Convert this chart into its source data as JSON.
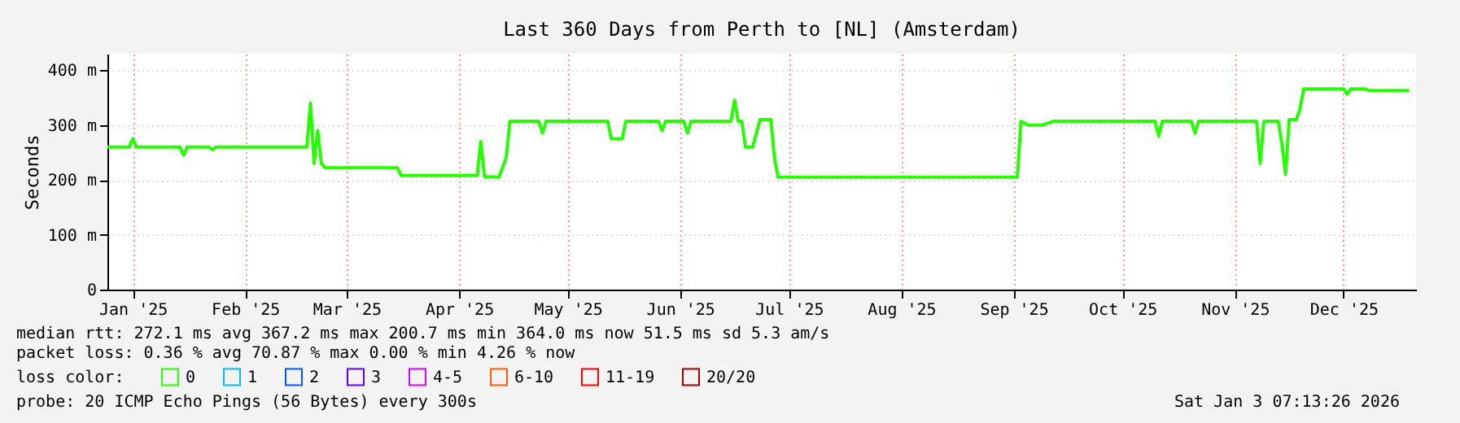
{
  "chart_data": {
    "type": "line",
    "title": "Last 360 Days from Perth to [NL] (Amsterdam)",
    "ylabel": "Seconds",
    "x": [
      "2025-01-08",
      "2025-01-14",
      "2025-01-15",
      "2025-01-16",
      "2025-01-28",
      "2025-01-29",
      "2025-01-30",
      "2025-02-05",
      "2025-02-06",
      "2025-02-07",
      "2025-03-04",
      "2025-03-05",
      "2025-03-06",
      "2025-03-07",
      "2025-03-08",
      "2025-03-09",
      "2025-03-29",
      "2025-03-30",
      "2025-04-20",
      "2025-04-21",
      "2025-04-22",
      "2025-04-26",
      "2025-04-28",
      "2025-04-29",
      "2025-05-07",
      "2025-05-08",
      "2025-05-09",
      "2025-05-26",
      "2025-05-27",
      "2025-05-30",
      "2025-05-31",
      "2025-06-09",
      "2025-06-10",
      "2025-06-11",
      "2025-06-16",
      "2025-06-17",
      "2025-06-18",
      "2025-06-29",
      "2025-06-30",
      "2025-07-01",
      "2025-07-02",
      "2025-07-03",
      "2025-07-05",
      "2025-07-07",
      "2025-07-10",
      "2025-07-11",
      "2025-07-12",
      "2025-09-16",
      "2025-09-17",
      "2025-09-19",
      "2025-09-23",
      "2025-09-26",
      "2025-10-24",
      "2025-10-25",
      "2025-10-26",
      "2025-11-03",
      "2025-11-04",
      "2025-11-05",
      "2025-11-21",
      "2025-11-22",
      "2025-11-23",
      "2025-11-27",
      "2025-11-28",
      "2025-11-29",
      "2025-11-30",
      "2025-12-02",
      "2025-12-03",
      "2025-12-04",
      "2025-12-15",
      "2025-12-16",
      "2025-12-17",
      "2025-12-21",
      "2025-12-22",
      "2026-01-02"
    ],
    "series": [
      {
        "name": "0",
        "color": "#26ff00",
        "values": [
          260,
          260,
          275,
          260,
          260,
          245,
          260,
          260,
          255,
          260,
          260,
          340,
          230,
          290,
          230,
          222,
          222,
          208,
          208,
          270,
          206,
          205,
          240,
          307,
          307,
          285,
          307,
          307,
          275,
          275,
          307,
          307,
          290,
          307,
          307,
          285,
          307,
          307,
          345,
          307,
          307,
          260,
          260,
          310,
          310,
          240,
          205,
          205,
          307,
          300,
          300,
          307,
          307,
          280,
          307,
          307,
          285,
          307,
          307,
          230,
          307,
          307,
          265,
          210,
          310,
          310,
          330,
          366,
          366,
          356,
          366,
          366,
          363,
          363
        ]
      },
      {
        "name": "1",
        "color": "#00b8ff",
        "values": [
          null,
          null,
          null,
          null,
          null,
          null,
          null,
          null,
          null,
          null,
          null,
          null,
          null,
          null,
          null,
          null,
          null,
          null,
          null,
          null,
          null,
          null,
          null,
          null,
          null,
          null,
          null,
          null,
          null,
          null,
          null,
          null,
          null,
          null,
          null,
          null,
          null,
          null,
          null,
          null,
          null,
          null,
          null,
          null,
          null,
          null,
          null,
          null,
          null,
          null,
          null,
          null,
          null,
          null,
          null,
          null,
          null,
          null,
          null,
          null,
          null,
          null,
          null,
          null,
          null,
          null,
          null,
          null,
          null,
          null,
          null,
          null,
          null,
          null
        ]
      },
      {
        "name": "2",
        "color": "#0059ff",
        "values": [
          null,
          null,
          null,
          null,
          null,
          null,
          null,
          null,
          null,
          null,
          null,
          null,
          null,
          null,
          null,
          null,
          null,
          null,
          null,
          null,
          null,
          null,
          null,
          null,
          null,
          null,
          null,
          null,
          null,
          null,
          null,
          null,
          null,
          null,
          null,
          null,
          null,
          null,
          null,
          null,
          null,
          null,
          null,
          null,
          null,
          null,
          null,
          null,
          null,
          null,
          null,
          null,
          null,
          null,
          null,
          null,
          null,
          null,
          null,
          null,
          null,
          null,
          null,
          null,
          null,
          null,
          null,
          null,
          null,
          null,
          null,
          null,
          null,
          null
        ]
      },
      {
        "name": "3",
        "color": "#5e00ff",
        "values": [
          null,
          null,
          null,
          null,
          null,
          null,
          null,
          null,
          null,
          null,
          null,
          null,
          null,
          null,
          null,
          null,
          null,
          null,
          null,
          null,
          null,
          null,
          null,
          null,
          null,
          null,
          null,
          null,
          null,
          null,
          null,
          null,
          null,
          null,
          null,
          null,
          null,
          null,
          null,
          null,
          null,
          null,
          null,
          null,
          null,
          null,
          null,
          null,
          null,
          null,
          null,
          null,
          null,
          null,
          null,
          null,
          null,
          null,
          null,
          null,
          null,
          null,
          null,
          null,
          null,
          null,
          null,
          null,
          null,
          null,
          null,
          null,
          null,
          null
        ]
      },
      {
        "name": "4-5",
        "color": "#dd00ff",
        "values": [
          null,
          null,
          null,
          null,
          null,
          null,
          null,
          null,
          null,
          null,
          null,
          null,
          null,
          null,
          null,
          null,
          null,
          null,
          null,
          null,
          null,
          null,
          null,
          null,
          null,
          null,
          null,
          null,
          null,
          null,
          null,
          null,
          null,
          null,
          null,
          null,
          null,
          null,
          null,
          null,
          null,
          null,
          null,
          null,
          null,
          null,
          null,
          null,
          null,
          null,
          null,
          null,
          null,
          null,
          null,
          null,
          null,
          null,
          null,
          null,
          null,
          null,
          null,
          null,
          null,
          null,
          null,
          null,
          null,
          null,
          null,
          null,
          null,
          null
        ]
      },
      {
        "name": "6-10",
        "color": "#ff5e00",
        "values": [
          null,
          null,
          null,
          null,
          null,
          null,
          null,
          null,
          null,
          null,
          null,
          null,
          null,
          null,
          null,
          null,
          null,
          null,
          null,
          null,
          null,
          null,
          null,
          null,
          null,
          null,
          null,
          null,
          null,
          null,
          null,
          null,
          null,
          null,
          null,
          null,
          null,
          null,
          null,
          null,
          null,
          null,
          null,
          null,
          null,
          null,
          null,
          null,
          null,
          null,
          null,
          null,
          null,
          null,
          null,
          null,
          null,
          null,
          null,
          null,
          null,
          null,
          null,
          null,
          null,
          null,
          null,
          null,
          null,
          null,
          null,
          null,
          null,
          null
        ]
      },
      {
        "name": "11-19",
        "color": "#ff0000",
        "values": [
          null,
          null,
          null,
          null,
          null,
          null,
          null,
          null,
          null,
          null,
          null,
          null,
          null,
          null,
          null,
          null,
          null,
          null,
          null,
          null,
          null,
          null,
          null,
          null,
          null,
          null,
          null,
          null,
          null,
          null,
          null,
          null,
          null,
          null,
          null,
          null,
          null,
          null,
          null,
          null,
          null,
          null,
          null,
          null,
          null,
          null,
          null,
          null,
          null,
          null,
          null,
          null,
          null,
          null,
          null,
          null,
          null,
          null,
          null,
          null,
          null,
          null,
          null,
          null,
          null,
          null,
          null,
          null,
          null,
          null,
          null,
          null,
          null,
          null
        ]
      },
      {
        "name": "20/20",
        "color": "#a10000",
        "values": [
          null,
          null,
          null,
          null,
          null,
          null,
          null,
          null,
          null,
          null,
          null,
          null,
          null,
          null,
          null,
          null,
          null,
          null,
          null,
          null,
          null,
          null,
          null,
          null,
          null,
          null,
          null,
          null,
          null,
          null,
          null,
          null,
          null,
          null,
          null,
          null,
          null,
          null,
          null,
          null,
          null,
          null,
          null,
          null,
          null,
          null,
          null,
          null,
          null,
          null,
          null,
          null,
          null,
          null,
          null,
          null,
          null,
          null,
          null,
          null,
          null,
          null,
          null,
          null,
          null,
          null,
          null,
          null,
          null,
          null,
          null,
          null,
          null,
          null
        ]
      }
    ],
    "legend_title": "loss color:",
    "legend": "bottom left",
    "grid": true,
    "xlim": [
      "2025-01-08",
      "2026-01-04"
    ],
    "xticks": [
      {
        "value": "2025-01-15",
        "label": "Jan '25"
      },
      {
        "value": "2025-02-15",
        "label": "Feb '25"
      },
      {
        "value": "2025-03-15",
        "label": "Mar '25"
      },
      {
        "value": "2025-04-15",
        "label": "Apr '25"
      },
      {
        "value": "2025-05-15",
        "label": "May '25"
      },
      {
        "value": "2025-06-15",
        "label": "Jun '25"
      },
      {
        "value": "2025-07-15",
        "label": "Jul '25"
      },
      {
        "value": "2025-08-15",
        "label": "Aug '25"
      },
      {
        "value": "2025-09-15",
        "label": "Sep '25"
      },
      {
        "value": "2025-10-15",
        "label": "Oct '25"
      },
      {
        "value": "2025-11-15",
        "label": "Nov '25"
      },
      {
        "value": "2025-12-15",
        "label": "Dec '25"
      }
    ],
    "ylim": [
      0,
      430
    ],
    "yticks": [
      0,
      {
        "value": 100,
        "label": "100 m"
      },
      {
        "value": 200,
        "label": "200 m"
      },
      {
        "value": 300,
        "label": "300 m"
      },
      {
        "value": 400,
        "label": "400 m"
      }
    ],
    "annotations": [
      "median rtt: 272.1 ms avg 367.2 ms max 200.7 ms min 364.0 ms now 51.5 ms sd 5.3 am/s",
      "packet loss: 0.36 % avg 70.87 % max 0.00 % min 4.26 % now",
      "probe: 20 ICMP Echo Pings (56 Bytes) every 300s",
      "Sat Jan 3 07:13:26 2026"
    ]
  }
}
